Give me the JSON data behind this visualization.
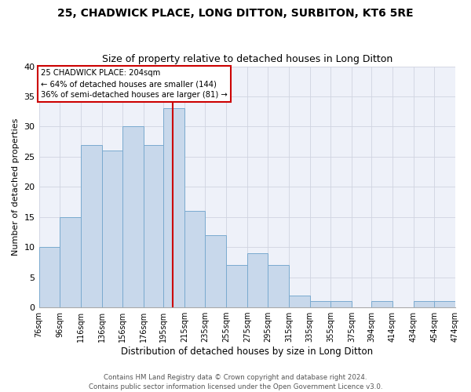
{
  "title": "25, CHADWICK PLACE, LONG DITTON, SURBITON, KT6 5RE",
  "subtitle": "Size of property relative to detached houses in Long Ditton",
  "xlabel": "Distribution of detached houses by size in Long Ditton",
  "ylabel": "Number of detached properties",
  "bar_color": "#c8d8eb",
  "bar_edge_color": "#7aaacf",
  "background_color": "#eef1f9",
  "grid_color": "#d0d4e0",
  "bins": [
    76,
    96,
    116,
    136,
    156,
    176,
    195,
    215,
    235,
    255,
    275,
    295,
    315,
    335,
    355,
    375,
    394,
    414,
    434,
    454,
    474
  ],
  "counts": [
    10,
    15,
    27,
    26,
    30,
    27,
    33,
    16,
    12,
    7,
    9,
    7,
    2,
    1,
    1,
    0,
    1,
    0,
    1,
    1
  ],
  "tick_labels": [
    "76sqm",
    "96sqm",
    "116sqm",
    "136sqm",
    "156sqm",
    "176sqm",
    "195sqm",
    "215sqm",
    "235sqm",
    "255sqm",
    "275sqm",
    "295sqm",
    "315sqm",
    "335sqm",
    "355sqm",
    "375sqm",
    "394sqm",
    "414sqm",
    "434sqm",
    "454sqm",
    "474sqm"
  ],
  "property_size": 204,
  "vline_color": "#cc0000",
  "annotation_line1": "25 CHADWICK PLACE: 204sqm",
  "annotation_line2": "← 64% of detached houses are smaller (144)",
  "annotation_line3": "36% of semi-detached houses are larger (81) →",
  "annotation_box_color": "#ffffff",
  "annotation_box_edge": "#cc0000",
  "ylim": [
    0,
    40
  ],
  "yticks": [
    0,
    5,
    10,
    15,
    20,
    25,
    30,
    35,
    40
  ],
  "footer1": "Contains HM Land Registry data © Crown copyright and database right 2024.",
  "footer2": "Contains public sector information licensed under the Open Government Licence v3.0."
}
